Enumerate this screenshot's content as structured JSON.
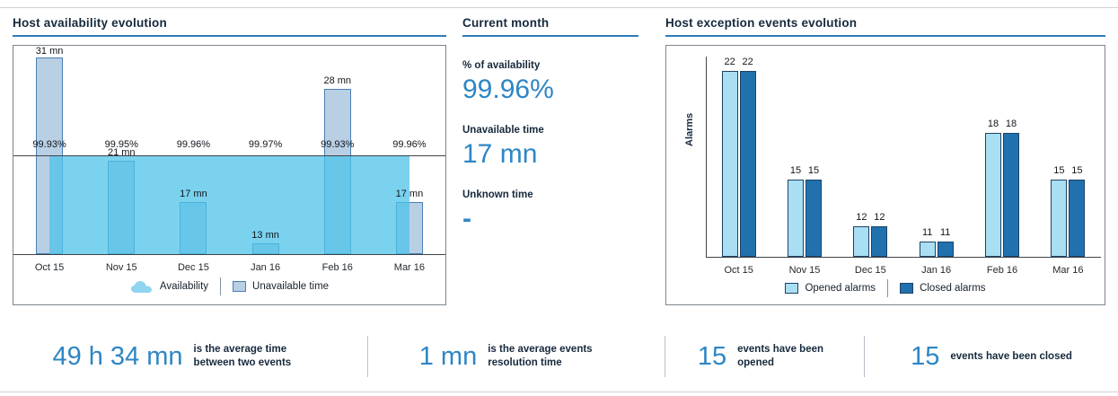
{
  "page": {
    "current_month": {
      "title": "Current month",
      "availability_label": "% of availability",
      "availability_value": "99.96%",
      "unavailable_label": "Unavailable time",
      "unavailable_value": "17 mn",
      "unknown_label": "Unknown time",
      "unknown_value": "-"
    },
    "footer_stats": [
      {
        "value": "49 h 34 mn",
        "label": "is the average time between two events"
      },
      {
        "value": "1 mn",
        "label": "is the average events resolution time"
      },
      {
        "value": "15",
        "label": "events have been opened"
      },
      {
        "value": "15",
        "label": "events have been closed"
      }
    ],
    "colors": {
      "accent_blue": "#2e86c4",
      "title_navy": "#16293c",
      "underline_blue": "#2e7cb8",
      "availability_area": "#79cfec",
      "unavailable_bar_fill": "#b9cfe4",
      "unavailable_bar_border": "#4a7fb5",
      "opened_bar_fill": "#a9def3",
      "closed_bar_fill": "#2171ae",
      "bar_border_navy": "#1d4265"
    }
  },
  "chart_data": [
    {
      "type": "bar",
      "title": "Host availability evolution",
      "categories": [
        "Oct 15",
        "Nov 15",
        "Dec 15",
        "Jan 16",
        "Feb 16",
        "Mar 16"
      ],
      "series": [
        {
          "name": "Unavailable time",
          "mark": "bar",
          "unit": "mn",
          "values": [
            31,
            21,
            17,
            13,
            28,
            17
          ],
          "labels": [
            "31 mn",
            "21 mn",
            "17 mn",
            "13 mn",
            "28 mn",
            "17 mn"
          ]
        },
        {
          "name": "Availability",
          "mark": "area",
          "unit": "%",
          "values": [
            99.93,
            99.95,
            99.96,
            99.97,
            99.93,
            99.96
          ],
          "labels": [
            "99.93%",
            "99.95%",
            "99.96%",
            "99.97%",
            "99.93%",
            "99.96%"
          ]
        }
      ],
      "bar_ylim_mn": [
        12,
        32
      ],
      "legend_position": "bottom",
      "grid": false
    },
    {
      "type": "bar",
      "title": "Host exception events evolution",
      "ylabel": "Alarms",
      "categories": [
        "Oct 15",
        "Nov 15",
        "Dec 15",
        "Jan 16",
        "Feb 16",
        "Mar 16"
      ],
      "series": [
        {
          "name": "Opened alarms",
          "values": [
            22,
            15,
            12,
            11,
            18,
            15
          ]
        },
        {
          "name": "Closed alarms",
          "values": [
            22,
            15,
            12,
            11,
            18,
            15
          ]
        }
      ],
      "ylim": [
        10,
        23
      ],
      "legend_position": "bottom",
      "grid": false
    }
  ]
}
